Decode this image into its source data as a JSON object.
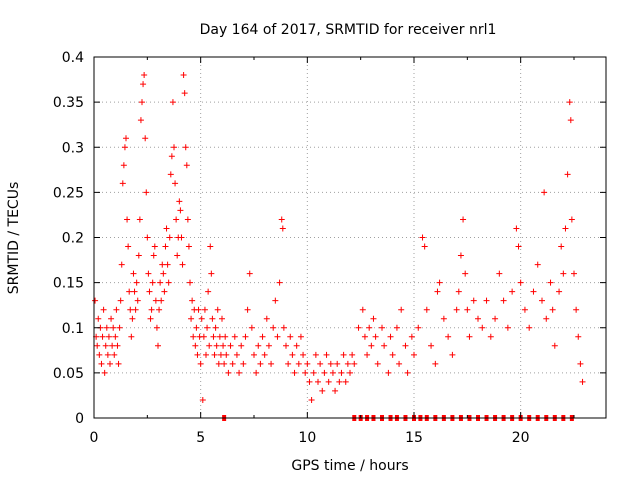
{
  "chart_data": {
    "type": "scatter",
    "title": "Day 164 of 2017, SRMTID for receiver nrl1",
    "xlabel": "GPS time / hours",
    "ylabel": "SRMTID / TECUs",
    "xlim": [
      0,
      24
    ],
    "ylim": [
      0,
      0.4
    ],
    "x_ticks": [
      0,
      5,
      10,
      15,
      20
    ],
    "x_tick_labels": [
      "0",
      "5",
      "10",
      "15",
      "20"
    ],
    "y_ticks": [
      0,
      0.05,
      0.1,
      0.15,
      0.2,
      0.25,
      0.3,
      0.35,
      0.4
    ],
    "y_tick_labels": [
      "0",
      "0.05",
      "0.1",
      "0.15",
      "0.2",
      "0.25",
      "0.3",
      "0.35",
      "0.4"
    ],
    "grid": true,
    "marker": "+",
    "series_color": "#ff0000",
    "series": [
      {
        "name": "SRMTID",
        "points": [
          [
            0.05,
            0.13
          ],
          [
            0.1,
            0.09
          ],
          [
            0.15,
            0.08
          ],
          [
            0.2,
            0.11
          ],
          [
            0.25,
            0.07
          ],
          [
            0.3,
            0.1
          ],
          [
            0.35,
            0.06
          ],
          [
            0.4,
            0.09
          ],
          [
            0.45,
            0.12
          ],
          [
            0.5,
            0.05
          ],
          [
            0.55,
            0.08
          ],
          [
            0.6,
            0.1
          ],
          [
            0.65,
            0.07
          ],
          [
            0.7,
            0.09
          ],
          [
            0.75,
            0.06
          ],
          [
            0.8,
            0.11
          ],
          [
            0.85,
            0.08
          ],
          [
            0.9,
            0.1
          ],
          [
            0.95,
            0.07
          ],
          [
            1.0,
            0.09
          ],
          [
            1.05,
            0.12
          ],
          [
            1.1,
            0.08
          ],
          [
            1.15,
            0.06
          ],
          [
            1.2,
            0.1
          ],
          [
            1.25,
            0.13
          ],
          [
            1.3,
            0.17
          ],
          [
            1.35,
            0.26
          ],
          [
            1.4,
            0.28
          ],
          [
            1.45,
            0.3
          ],
          [
            1.5,
            0.31
          ],
          [
            1.55,
            0.22
          ],
          [
            1.6,
            0.19
          ],
          [
            1.65,
            0.14
          ],
          [
            1.7,
            0.12
          ],
          [
            1.75,
            0.09
          ],
          [
            1.8,
            0.11
          ],
          [
            1.85,
            0.16
          ],
          [
            1.9,
            0.14
          ],
          [
            1.95,
            0.12
          ],
          [
            2.0,
            0.15
          ],
          [
            2.05,
            0.13
          ],
          [
            2.1,
            0.18
          ],
          [
            2.15,
            0.22
          ],
          [
            2.2,
            0.33
          ],
          [
            2.25,
            0.35
          ],
          [
            2.3,
            0.37
          ],
          [
            2.35,
            0.38
          ],
          [
            2.4,
            0.31
          ],
          [
            2.45,
            0.25
          ],
          [
            2.5,
            0.2
          ],
          [
            2.55,
            0.16
          ],
          [
            2.6,
            0.14
          ],
          [
            2.65,
            0.11
          ],
          [
            2.7,
            0.12
          ],
          [
            2.75,
            0.15
          ],
          [
            2.8,
            0.18
          ],
          [
            2.85,
            0.19
          ],
          [
            2.9,
            0.13
          ],
          [
            2.95,
            0.1
          ],
          [
            3.0,
            0.08
          ],
          [
            3.05,
            0.12
          ],
          [
            3.1,
            0.15
          ],
          [
            3.15,
            0.13
          ],
          [
            3.2,
            0.17
          ],
          [
            3.25,
            0.16
          ],
          [
            3.3,
            0.14
          ],
          [
            3.35,
            0.19
          ],
          [
            3.4,
            0.21
          ],
          [
            3.45,
            0.17
          ],
          [
            3.5,
            0.15
          ],
          [
            3.55,
            0.2
          ],
          [
            3.6,
            0.27
          ],
          [
            3.65,
            0.29
          ],
          [
            3.7,
            0.35
          ],
          [
            3.75,
            0.3
          ],
          [
            3.8,
            0.26
          ],
          [
            3.85,
            0.22
          ],
          [
            3.9,
            0.18
          ],
          [
            3.95,
            0.2
          ],
          [
            4.0,
            0.24
          ],
          [
            4.05,
            0.23
          ],
          [
            4.1,
            0.2
          ],
          [
            4.15,
            0.17
          ],
          [
            4.2,
            0.38
          ],
          [
            4.25,
            0.36
          ],
          [
            4.3,
            0.3
          ],
          [
            4.35,
            0.28
          ],
          [
            4.4,
            0.22
          ],
          [
            4.45,
            0.19
          ],
          [
            4.5,
            0.15
          ],
          [
            4.55,
            0.11
          ],
          [
            4.6,
            0.13
          ],
          [
            4.65,
            0.09
          ],
          [
            4.7,
            0.12
          ],
          [
            4.75,
            0.08
          ],
          [
            4.8,
            0.1
          ],
          [
            4.85,
            0.07
          ],
          [
            4.9,
            0.12
          ],
          [
            4.95,
            0.09
          ],
          [
            5.0,
            0.06
          ],
          [
            5.05,
            0.11
          ],
          [
            5.1,
            0.02
          ],
          [
            5.15,
            0.09
          ],
          [
            5.2,
            0.12
          ],
          [
            5.25,
            0.07
          ],
          [
            5.3,
            0.1
          ],
          [
            5.35,
            0.14
          ],
          [
            5.4,
            0.08
          ],
          [
            5.45,
            0.19
          ],
          [
            5.5,
            0.16
          ],
          [
            5.55,
            0.11
          ],
          [
            5.6,
            0.09
          ],
          [
            5.65,
            0.07
          ],
          [
            5.7,
            0.1
          ],
          [
            5.75,
            0.08
          ],
          [
            5.8,
            0.12
          ],
          [
            5.85,
            0.06
          ],
          [
            5.9,
            0.09
          ],
          [
            5.95,
            0.07
          ],
          [
            6.0,
            0.11
          ],
          [
            6.05,
            0.08
          ],
          [
            6.1,
            0.06
          ],
          [
            6.15,
            0.09
          ],
          [
            6.2,
            0.07
          ],
          [
            6.3,
            0.05
          ],
          [
            6.4,
            0.08
          ],
          [
            6.5,
            0.06
          ],
          [
            6.6,
            0.09
          ],
          [
            6.7,
            0.07
          ],
          [
            6.8,
            0.05
          ],
          [
            6.9,
            0.08
          ],
          [
            7.0,
            0.06
          ],
          [
            7.1,
            0.09
          ],
          [
            7.2,
            0.12
          ],
          [
            7.3,
            0.16
          ],
          [
            7.4,
            0.1
          ],
          [
            7.5,
            0.07
          ],
          [
            7.6,
            0.05
          ],
          [
            7.7,
            0.08
          ],
          [
            7.8,
            0.06
          ],
          [
            7.9,
            0.09
          ],
          [
            8.0,
            0.07
          ],
          [
            8.1,
            0.11
          ],
          [
            8.2,
            0.08
          ],
          [
            8.3,
            0.06
          ],
          [
            8.4,
            0.1
          ],
          [
            8.5,
            0.13
          ],
          [
            8.6,
            0.09
          ],
          [
            8.7,
            0.15
          ],
          [
            8.8,
            0.22
          ],
          [
            8.85,
            0.21
          ],
          [
            8.9,
            0.1
          ],
          [
            9.0,
            0.08
          ],
          [
            9.1,
            0.06
          ],
          [
            9.2,
            0.09
          ],
          [
            9.3,
            0.07
          ],
          [
            9.4,
            0.05
          ],
          [
            9.5,
            0.08
          ],
          [
            9.6,
            0.06
          ],
          [
            9.7,
            0.09
          ],
          [
            9.8,
            0.07
          ],
          [
            9.9,
            0.05
          ],
          [
            10.0,
            0.06
          ],
          [
            10.1,
            0.04
          ],
          [
            10.2,
            0.02
          ],
          [
            10.3,
            0.05
          ],
          [
            10.4,
            0.07
          ],
          [
            10.5,
            0.04
          ],
          [
            10.6,
            0.06
          ],
          [
            10.7,
            0.03
          ],
          [
            10.8,
            0.05
          ],
          [
            10.9,
            0.07
          ],
          [
            11.0,
            0.04
          ],
          [
            11.1,
            0.06
          ],
          [
            11.2,
            0.05
          ],
          [
            11.3,
            0.03
          ],
          [
            11.4,
            0.06
          ],
          [
            11.5,
            0.04
          ],
          [
            11.6,
            0.05
          ],
          [
            11.7,
            0.07
          ],
          [
            11.8,
            0.04
          ],
          [
            11.9,
            0.06
          ],
          [
            12.0,
            0.05
          ],
          [
            12.1,
            0.07
          ],
          [
            12.2,
            0.06
          ],
          [
            12.4,
            0.1
          ],
          [
            12.6,
            0.12
          ],
          [
            12.7,
            0.09
          ],
          [
            12.8,
            0.07
          ],
          [
            12.9,
            0.1
          ],
          [
            13.0,
            0.08
          ],
          [
            13.1,
            0.11
          ],
          [
            13.2,
            0.09
          ],
          [
            13.3,
            0.06
          ],
          [
            13.5,
            0.1
          ],
          [
            13.6,
            0.08
          ],
          [
            13.8,
            0.05
          ],
          [
            13.9,
            0.09
          ],
          [
            14.0,
            0.07
          ],
          [
            14.2,
            0.1
          ],
          [
            14.3,
            0.06
          ],
          [
            14.4,
            0.12
          ],
          [
            14.6,
            0.08
          ],
          [
            14.7,
            0.05
          ],
          [
            14.9,
            0.09
          ],
          [
            15.0,
            0.07
          ],
          [
            15.2,
            0.1
          ],
          [
            15.4,
            0.2
          ],
          [
            15.5,
            0.19
          ],
          [
            15.6,
            0.12
          ],
          [
            15.8,
            0.08
          ],
          [
            16.0,
            0.06
          ],
          [
            16.1,
            0.14
          ],
          [
            16.2,
            0.15
          ],
          [
            16.4,
            0.11
          ],
          [
            16.6,
            0.09
          ],
          [
            16.8,
            0.07
          ],
          [
            17.0,
            0.12
          ],
          [
            17.1,
            0.14
          ],
          [
            17.2,
            0.18
          ],
          [
            17.3,
            0.22
          ],
          [
            17.4,
            0.16
          ],
          [
            17.5,
            0.12
          ],
          [
            17.6,
            0.09
          ],
          [
            17.8,
            0.13
          ],
          [
            18.0,
            0.11
          ],
          [
            18.2,
            0.1
          ],
          [
            18.4,
            0.13
          ],
          [
            18.6,
            0.09
          ],
          [
            18.8,
            0.11
          ],
          [
            19.0,
            0.16
          ],
          [
            19.2,
            0.13
          ],
          [
            19.4,
            0.1
          ],
          [
            19.6,
            0.14
          ],
          [
            19.8,
            0.21
          ],
          [
            19.9,
            0.19
          ],
          [
            20.0,
            0.15
          ],
          [
            20.2,
            0.12
          ],
          [
            20.4,
            0.1
          ],
          [
            20.6,
            0.14
          ],
          [
            20.8,
            0.17
          ],
          [
            21.0,
            0.13
          ],
          [
            21.1,
            0.25
          ],
          [
            21.2,
            0.11
          ],
          [
            21.4,
            0.15
          ],
          [
            21.5,
            0.12
          ],
          [
            21.6,
            0.08
          ],
          [
            21.8,
            0.14
          ],
          [
            21.9,
            0.19
          ],
          [
            22.0,
            0.16
          ],
          [
            22.1,
            0.21
          ],
          [
            22.2,
            0.27
          ],
          [
            22.3,
            0.35
          ],
          [
            22.35,
            0.33
          ],
          [
            22.4,
            0.22
          ],
          [
            22.5,
            0.16
          ],
          [
            22.6,
            0.12
          ],
          [
            22.7,
            0.09
          ],
          [
            22.8,
            0.06
          ],
          [
            22.9,
            0.04
          ]
        ],
        "zero_points": [
          6.1,
          12.2,
          12.5,
          12.8,
          13.1,
          13.5,
          13.9,
          14.2,
          14.6,
          15.0,
          15.3,
          15.6,
          16.0,
          16.4,
          16.8,
          17.2,
          17.6,
          18.0,
          18.4,
          18.8,
          19.2,
          19.6,
          20.0,
          20.4,
          20.8,
          21.2,
          21.6,
          22.0,
          22.4
        ]
      }
    ]
  }
}
